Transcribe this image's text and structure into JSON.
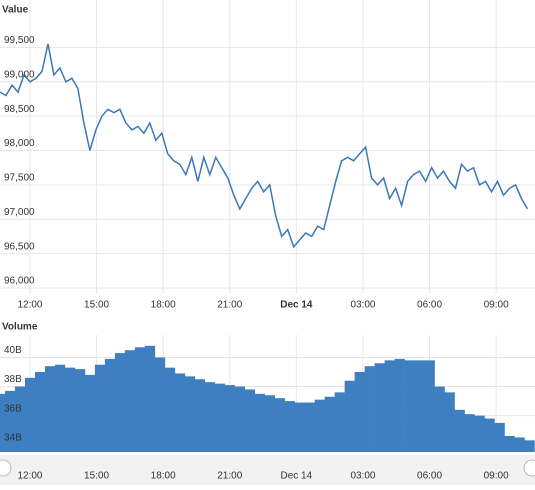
{
  "chart_data": [
    {
      "type": "line",
      "title": "Value",
      "color": "#3a78b9",
      "grid": true,
      "x": [
        10.65,
        10.92,
        11.19,
        11.46,
        11.73,
        12.0,
        12.27,
        12.54,
        12.81,
        13.08,
        13.35,
        13.62,
        13.89,
        14.16,
        14.43,
        14.7,
        14.97,
        15.24,
        15.51,
        15.78,
        16.05,
        16.32,
        16.59,
        16.86,
        17.13,
        17.4,
        17.67,
        17.94,
        18.21,
        18.48,
        18.75,
        19.02,
        19.29,
        19.56,
        19.83,
        20.1,
        20.37,
        20.64,
        20.91,
        21.18,
        21.45,
        21.72,
        21.99,
        22.26,
        22.53,
        22.8,
        23.07,
        23.34,
        23.61,
        23.88,
        24.15,
        24.42,
        24.69,
        24.96,
        25.23,
        25.5,
        25.77,
        26.04,
        26.31,
        26.58,
        26.85,
        27.12,
        27.39,
        27.66,
        27.93,
        28.2,
        28.47,
        28.74,
        29.01,
        29.28,
        29.55,
        29.82,
        30.09,
        30.36,
        30.63,
        30.9,
        31.17,
        31.44,
        31.71,
        31.98,
        32.25,
        32.52,
        32.79,
        33.06,
        33.33,
        33.6,
        33.87,
        34.14,
        34.41
      ],
      "values": [
        98850,
        98800,
        98950,
        98850,
        99100,
        99000,
        99050,
        99150,
        99550,
        99100,
        99200,
        99000,
        99050,
        98900,
        98400,
        98000,
        98300,
        98500,
        98600,
        98550,
        98600,
        98400,
        98300,
        98350,
        98250,
        98400,
        98150,
        98250,
        97950,
        97850,
        97800,
        97650,
        97900,
        97550,
        97900,
        97650,
        97900,
        97750,
        97600,
        97350,
        97150,
        97300,
        97450,
        97550,
        97400,
        97500,
        97050,
        96750,
        96850,
        96600,
        96700,
        96800,
        96750,
        96900,
        96850,
        97200,
        97550,
        97850,
        97900,
        97850,
        97950,
        98050,
        97600,
        97500,
        97600,
        97300,
        97450,
        97200,
        97550,
        97650,
        97700,
        97550,
        97750,
        97600,
        97700,
        97550,
        97450,
        97800,
        97700,
        97750,
        97500,
        97550,
        97400,
        97550,
        97350,
        97450,
        97500,
        97300,
        97150
      ],
      "ylim": [
        96000,
        100000
      ],
      "yticks": [
        {
          "value": 96000,
          "label": "96,000"
        },
        {
          "value": 96500,
          "label": "96,500"
        },
        {
          "value": 97000,
          "label": "97,000"
        },
        {
          "value": 97500,
          "label": "97,500"
        },
        {
          "value": 98000,
          "label": "98,000"
        },
        {
          "value": 98500,
          "label": "98,500"
        },
        {
          "value": 99000,
          "label": "99,000"
        },
        {
          "value": 99500,
          "label": "99,500"
        }
      ],
      "xlim": [
        10.65,
        34.75
      ],
      "xticks": [
        {
          "value": 12,
          "label": "12:00"
        },
        {
          "value": 15,
          "label": "15:00"
        },
        {
          "value": 18,
          "label": "18:00"
        },
        {
          "value": 21,
          "label": "21:00"
        },
        {
          "value": 24,
          "label": "Dec 14"
        },
        {
          "value": 27,
          "label": "03:00"
        },
        {
          "value": 30,
          "label": "06:00"
        },
        {
          "value": 33,
          "label": "09:00"
        }
      ]
    },
    {
      "type": "bar",
      "title": "Volume",
      "color": "#3d7fc1",
      "grid": true,
      "x": [
        10.65,
        11.1,
        11.55,
        12.0,
        12.45,
        12.9,
        13.35,
        13.8,
        14.25,
        14.7,
        15.15,
        15.6,
        16.05,
        16.5,
        16.95,
        17.4,
        17.85,
        18.3,
        18.75,
        19.2,
        19.65,
        20.1,
        20.55,
        21.0,
        21.45,
        21.9,
        22.35,
        22.8,
        23.25,
        23.7,
        24.15,
        24.6,
        25.05,
        25.5,
        25.95,
        26.4,
        26.85,
        27.3,
        27.75,
        28.2,
        28.65,
        29.1,
        29.55,
        30.0,
        30.45,
        30.9,
        31.35,
        31.8,
        32.25,
        32.7,
        33.15,
        33.6,
        34.05,
        34.5
      ],
      "values": [
        37.5,
        37.7,
        38.0,
        38.6,
        39.0,
        39.4,
        39.5,
        39.3,
        39.2,
        38.8,
        39.5,
        39.9,
        40.3,
        40.5,
        40.7,
        40.8,
        40.0,
        39.3,
        38.9,
        38.7,
        38.5,
        38.3,
        38.2,
        38.1,
        38.0,
        37.8,
        37.5,
        37.4,
        37.2,
        37.0,
        36.9,
        36.9,
        37.1,
        37.3,
        37.6,
        38.4,
        39.0,
        39.4,
        39.6,
        39.8,
        39.9,
        39.8,
        39.8,
        39.8,
        38.0,
        37.6,
        36.4,
        36.1,
        36.0,
        35.8,
        35.5,
        34.6,
        34.5,
        34.3
      ],
      "ylim": [
        33.5,
        41.2
      ],
      "yticks": [
        {
          "value": 34,
          "label": "34B"
        },
        {
          "value": 36,
          "label": "36B"
        },
        {
          "value": 38,
          "label": "38B"
        },
        {
          "value": 40,
          "label": "40B"
        }
      ],
      "xlim": [
        10.65,
        34.75
      ],
      "xticks": [
        {
          "value": 12,
          "label": "12:00"
        },
        {
          "value": 15,
          "label": "15:00"
        },
        {
          "value": 18,
          "label": "18:00"
        },
        {
          "value": 21,
          "label": "21:00"
        },
        {
          "value": 24,
          "label": "Dec 14"
        },
        {
          "value": 27,
          "label": "03:00"
        },
        {
          "value": 30,
          "label": "06:00"
        },
        {
          "value": 33,
          "label": "09:00"
        }
      ]
    }
  ]
}
